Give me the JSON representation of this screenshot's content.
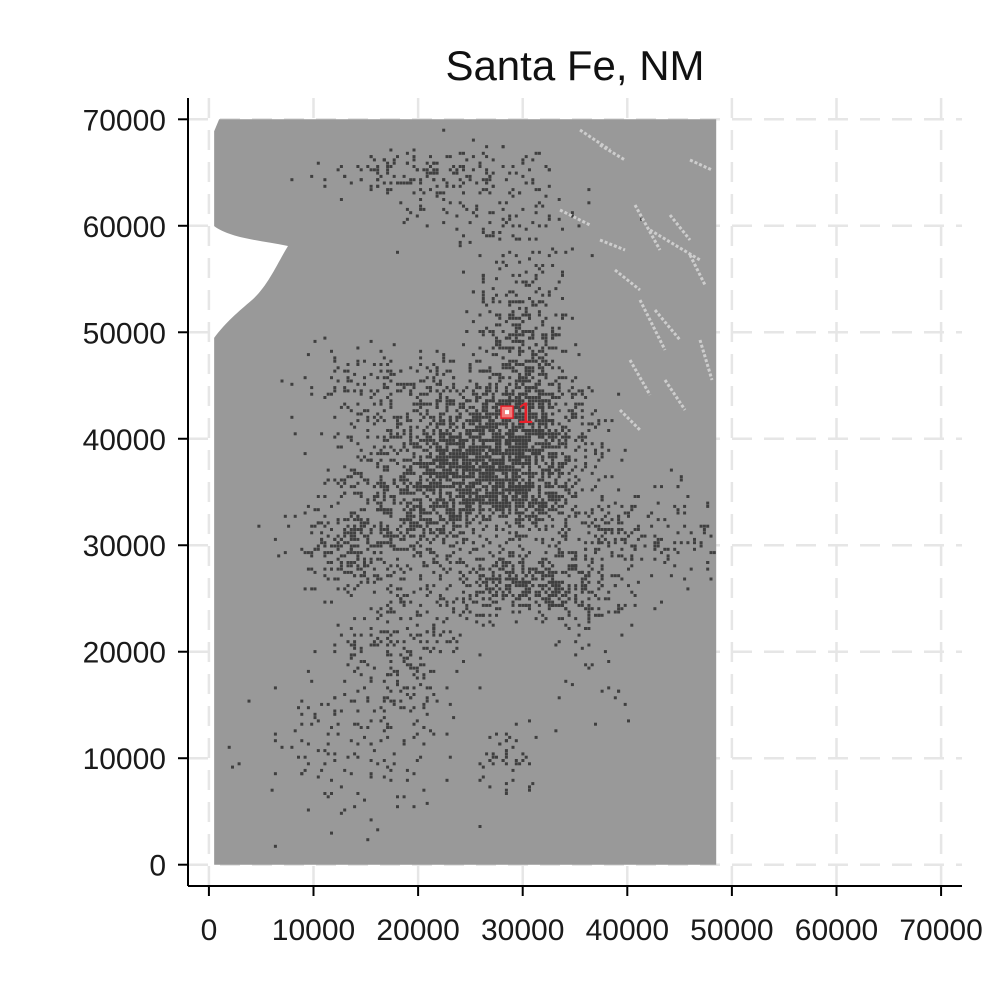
{
  "chart_data": {
    "type": "scatter",
    "title": "Santa Fe, NM",
    "xlabel": "",
    "ylabel": "",
    "xlim": [
      -2000,
      72000
    ],
    "ylim": [
      -2000,
      72000
    ],
    "x_ticks": [
      0,
      10000,
      20000,
      30000,
      40000,
      50000,
      60000,
      70000
    ],
    "y_ticks": [
      0,
      10000,
      20000,
      30000,
      40000,
      50000,
      60000,
      70000
    ],
    "x_tick_labels": [
      "0",
      "10000",
      "20000",
      "30000",
      "40000",
      "50000",
      "60000",
      "70000"
    ],
    "y_tick_labels": [
      "0",
      "10000",
      "20000",
      "30000",
      "40000",
      "50000",
      "60000",
      "70000"
    ],
    "grid": true,
    "raster_extent": {
      "x": [
        500,
        48500
      ],
      "y": [
        0,
        70000
      ]
    },
    "colors": {
      "background_cells": "#999999",
      "developed_cells": "#3f3f3f",
      "light_cells": "#cdcdcd",
      "marker": "#e8202a",
      "grid": "#e6e6e6"
    },
    "points": [
      {
        "label": "1",
        "x": 28500,
        "y": 42500
      }
    ]
  }
}
